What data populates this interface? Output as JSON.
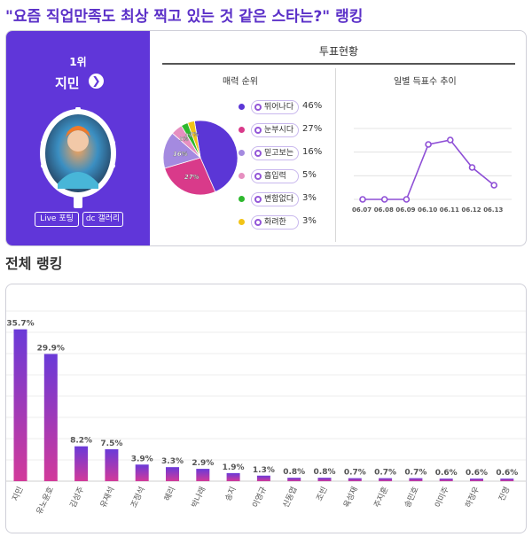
{
  "headline": "\"요즘 직업만족도 최상 찍고 있는 것 같은 스타는?\" 랭킹",
  "winner": {
    "rank_label": "1위",
    "name": "지민",
    "arrow_glyph": "❯",
    "live_button": "Live 포팅",
    "gallery_button": "dc 갤러리"
  },
  "vote_status_title": "투표현황",
  "charm": {
    "title": "매력 순위",
    "chart_data": {
      "type": "pie",
      "labels": [
        "뛰어나다",
        "눈부시다",
        "믿고보는",
        "흡입력",
        "변함없다",
        "화려한"
      ],
      "values": [
        46,
        27,
        16,
        5,
        3,
        3
      ],
      "colors": [
        "#5b36d6",
        "#d93a8a",
        "#a48ae0",
        "#e68fc0",
        "#2eb82e",
        "#f2c417"
      ],
      "slice_labels": [
        "",
        "27%",
        "16%",
        "5%",
        "3%",
        "3%"
      ],
      "value_labels": [
        "46%",
        "27%",
        "16%",
        "5%",
        "3%",
        "3%"
      ]
    }
  },
  "trend": {
    "title": "일별 득표수 추이",
    "chart_data": {
      "type": "line",
      "x": [
        "06.07",
        "06.08",
        "06.09",
        "06.10",
        "06.11",
        "06.12",
        "06.13"
      ],
      "y": [
        0,
        0,
        0,
        62,
        67,
        36,
        16
      ],
      "ylim": [
        0,
        80
      ],
      "line_color": "#8e4fd6"
    }
  },
  "overall_title": "전체 랭킹",
  "overall": {
    "chart_data": {
      "type": "bar",
      "categories": [
        "지민",
        "유노윤호",
        "김성주",
        "유재석",
        "조정석",
        "혜리",
        "박나래",
        "송지",
        "이영규",
        "신동엽",
        "조빈",
        "육성재",
        "주지훈",
        "송민호",
        "이미주",
        "하정우",
        "진영"
      ],
      "values": [
        35.7,
        29.9,
        8.2,
        7.5,
        3.9,
        3.3,
        2.9,
        1.9,
        1.3,
        0.8,
        0.8,
        0.7,
        0.7,
        0.7,
        0.6,
        0.6,
        0.6
      ],
      "value_labels": [
        "35.7%",
        "29.9%",
        "8.2%",
        "7.5%",
        "3.9%",
        "3.3%",
        "2.9%",
        "1.9%",
        "1.3%",
        "0.8%",
        "0.8%",
        "0.7%",
        "0.7%",
        "0.7%",
        "0.6%",
        "0.6%",
        "0.6%"
      ],
      "bar_gradient": [
        "#6a3ad8",
        "#d23a9a"
      ]
    }
  }
}
